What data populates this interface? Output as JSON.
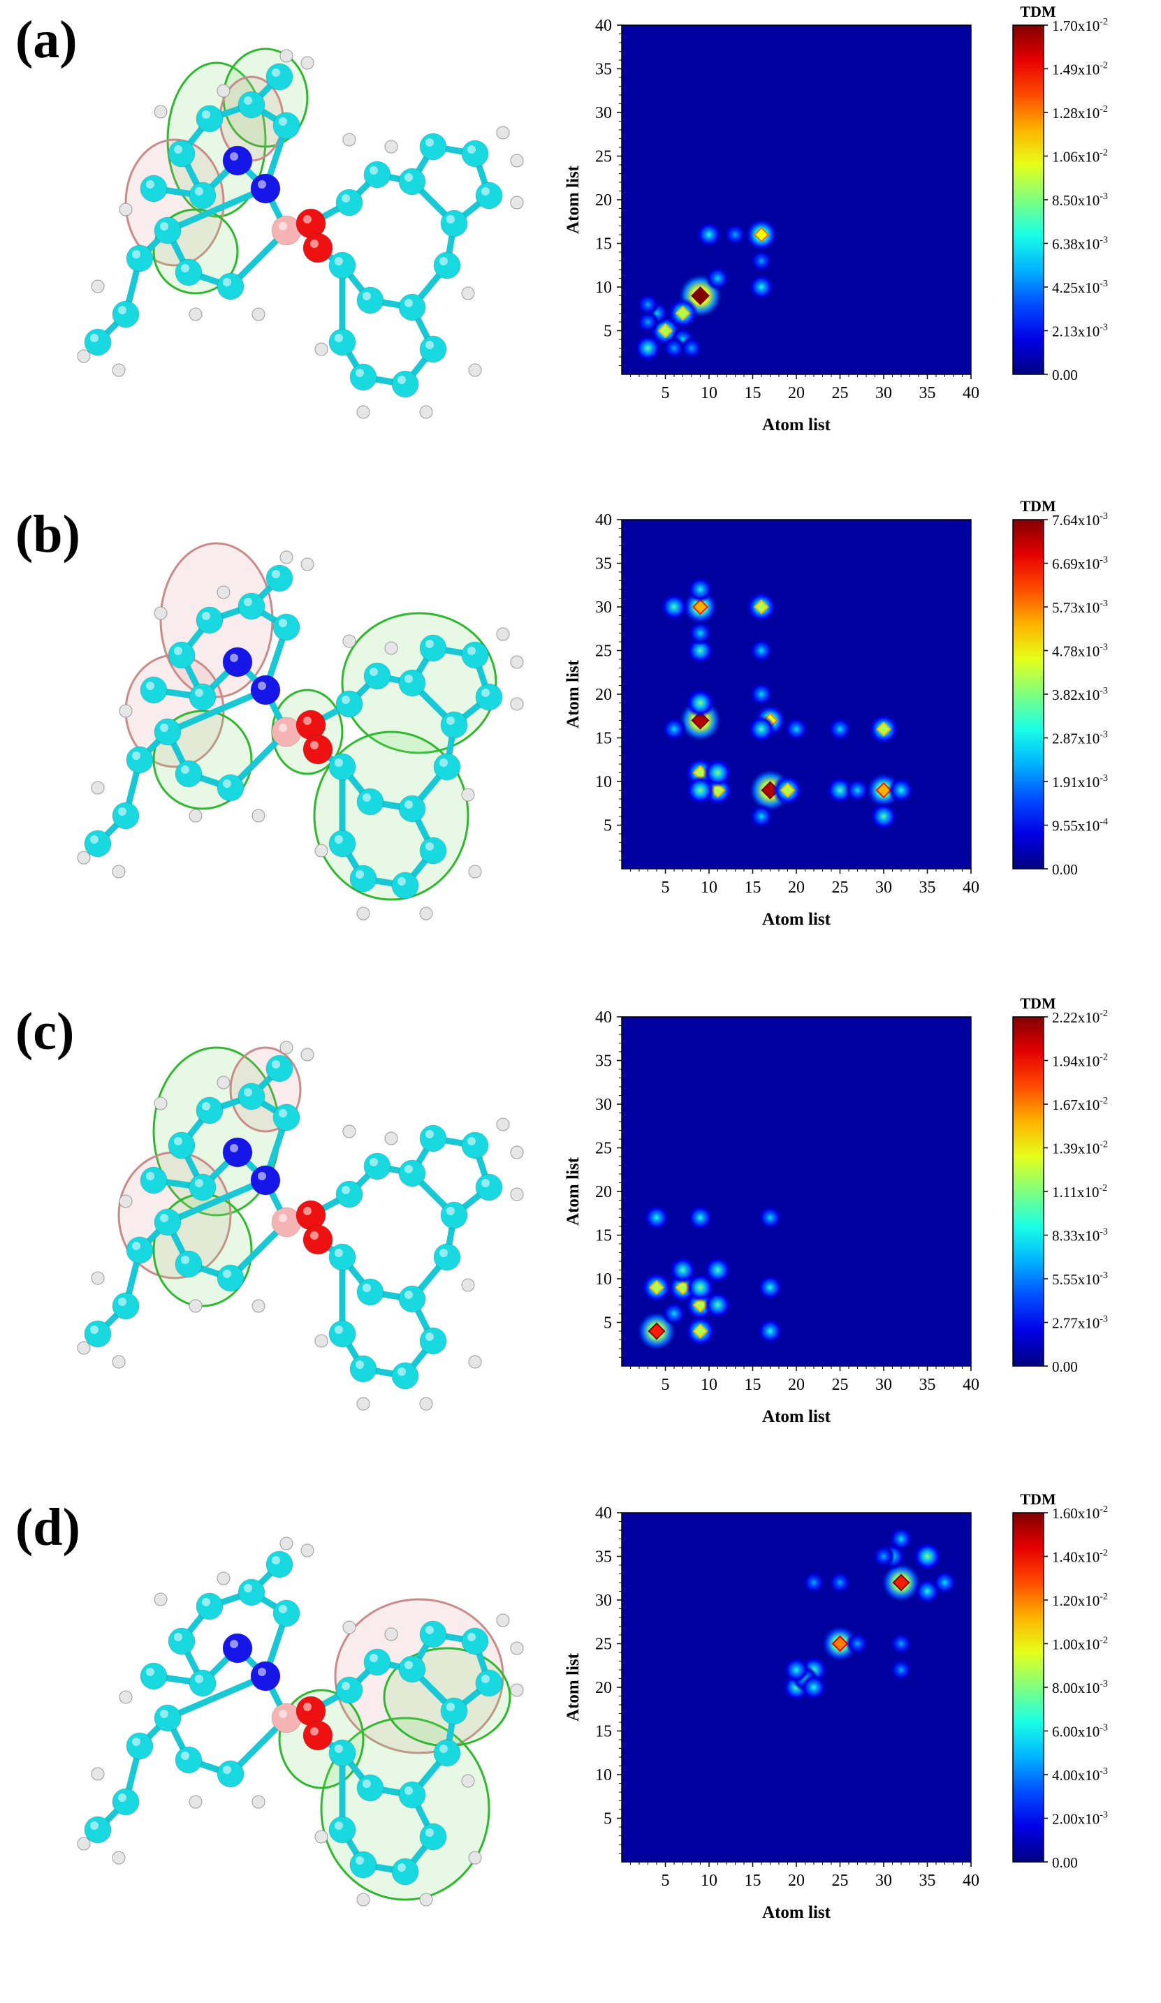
{
  "panels": [
    {
      "label": "(a)",
      "chart_data": {
        "type": "heatmap",
        "xlabel": "Atom list",
        "ylabel": "Atom list",
        "xlim": [
          0,
          40
        ],
        "ylim": [
          0,
          40
        ],
        "xticks": [
          5,
          10,
          15,
          20,
          25,
          30,
          35,
          40
        ],
        "yticks": [
          5,
          10,
          15,
          20,
          25,
          30,
          35,
          40
        ],
        "colorbar_title": "TDM",
        "colorbar_ticks": [
          "1.70x10-2",
          "1.49x10-2",
          "1.28x10-2",
          "1.06x10-2",
          "8.50x10-3",
          "6.38x10-3",
          "4.25x10-3",
          "2.13x10-3",
          "0.00"
        ],
        "vmax": 0.017,
        "hotspots": [
          [
            9,
            9,
            1.0
          ],
          [
            16,
            16,
            0.62
          ],
          [
            3,
            3,
            0.45
          ],
          [
            5,
            5,
            0.55
          ],
          [
            7,
            7,
            0.55
          ],
          [
            7,
            4,
            0.35
          ],
          [
            4,
            7,
            0.35
          ],
          [
            10,
            16,
            0.4
          ],
          [
            16,
            10,
            0.4
          ],
          [
            13,
            16,
            0.3
          ],
          [
            16,
            13,
            0.3
          ],
          [
            3,
            6,
            0.3
          ],
          [
            6,
            3,
            0.3
          ],
          [
            8,
            3,
            0.3
          ],
          [
            3,
            8,
            0.3
          ],
          [
            11,
            11,
            0.35
          ]
        ]
      }
    },
    {
      "label": "(b)",
      "chart_data": {
        "type": "heatmap",
        "xlabel": "Atom list",
        "ylabel": "Atom list",
        "xlim": [
          0,
          40
        ],
        "ylim": [
          0,
          40
        ],
        "xticks": [
          5,
          10,
          15,
          20,
          25,
          30,
          35,
          40
        ],
        "yticks": [
          5,
          10,
          15,
          20,
          25,
          30,
          35,
          40
        ],
        "colorbar_title": "TDM",
        "colorbar_ticks": [
          "7.64x10-3",
          "6.69x10-3",
          "5.73x10-3",
          "4.78x10-3",
          "3.82x10-3",
          "2.87x10-3",
          "1.91x10-3",
          "9.55x10-4",
          "0.00"
        ],
        "vmax": 0.00764,
        "hotspots": [
          [
            9,
            17,
            0.95
          ],
          [
            9,
            30,
            0.7
          ],
          [
            17,
            9,
            0.95
          ],
          [
            30,
            9,
            0.7
          ],
          [
            9,
            11,
            0.55
          ],
          [
            11,
            9,
            0.55
          ],
          [
            11,
            11,
            0.5
          ],
          [
            16,
            30,
            0.55
          ],
          [
            30,
            16,
            0.55
          ],
          [
            17,
            17,
            0.6
          ],
          [
            9,
            19,
            0.5
          ],
          [
            19,
            9,
            0.55
          ],
          [
            6,
            30,
            0.45
          ],
          [
            30,
            6,
            0.45
          ],
          [
            9,
            25,
            0.45
          ],
          [
            25,
            9,
            0.45
          ],
          [
            16,
            16,
            0.45
          ],
          [
            6,
            16,
            0.35
          ],
          [
            16,
            6,
            0.35
          ],
          [
            9,
            9,
            0.5
          ],
          [
            32,
            9,
            0.4
          ],
          [
            9,
            32,
            0.4
          ],
          [
            20,
            16,
            0.35
          ],
          [
            16,
            20,
            0.35
          ],
          [
            27,
            9,
            0.35
          ],
          [
            9,
            27,
            0.35
          ],
          [
            16,
            25,
            0.35
          ],
          [
            25,
            16,
            0.35
          ]
        ]
      }
    },
    {
      "label": "(c)",
      "chart_data": {
        "type": "heatmap",
        "xlabel": "Atom list",
        "ylabel": "Atom list",
        "xlim": [
          0,
          40
        ],
        "ylim": [
          0,
          40
        ],
        "xticks": [
          5,
          10,
          15,
          20,
          25,
          30,
          35,
          40
        ],
        "yticks": [
          5,
          10,
          15,
          20,
          25,
          30,
          35,
          40
        ],
        "colorbar_title": "TDM",
        "colorbar_ticks": [
          "2.22x10-2",
          "1.94x10-2",
          "1.67x10-2",
          "1.39x10-2",
          "1.11x10-2",
          "8.33x10-3",
          "5.55x10-3",
          "2.77x10-3",
          "0.00"
        ],
        "vmax": 0.0222,
        "hotspots": [
          [
            4,
            4,
            0.85
          ],
          [
            7,
            9,
            0.55
          ],
          [
            9,
            7,
            0.55
          ],
          [
            4,
            9,
            0.55
          ],
          [
            9,
            4,
            0.55
          ],
          [
            9,
            9,
            0.5
          ],
          [
            11,
            7,
            0.45
          ],
          [
            7,
            11,
            0.45
          ],
          [
            11,
            11,
            0.45
          ],
          [
            4,
            17,
            0.4
          ],
          [
            17,
            4,
            0.4
          ],
          [
            9,
            17,
            0.4
          ],
          [
            17,
            9,
            0.4
          ],
          [
            6,
            6,
            0.35
          ],
          [
            17,
            17,
            0.35
          ]
        ]
      }
    },
    {
      "label": "(d)",
      "chart_data": {
        "type": "heatmap",
        "xlabel": "Atom list",
        "ylabel": "Atom list",
        "xlim": [
          0,
          40
        ],
        "ylim": [
          0,
          40
        ],
        "xticks": [
          5,
          10,
          15,
          20,
          25,
          30,
          35,
          40
        ],
        "yticks": [
          5,
          10,
          15,
          20,
          25,
          30,
          35,
          40
        ],
        "colorbar_title": "TDM",
        "colorbar_ticks": [
          "1.60x10-2",
          "1.40x10-2",
          "1.20x10-2",
          "1.00x10-2",
          "8.00x10-3",
          "6.00x10-3",
          "4.00x10-3",
          "2.00x10-3",
          "0.00"
        ],
        "vmax": 0.016,
        "hotspots": [
          [
            32,
            32,
            0.85
          ],
          [
            25,
            25,
            0.75
          ],
          [
            35,
            35,
            0.5
          ],
          [
            20,
            20,
            0.45
          ],
          [
            22,
            22,
            0.45
          ],
          [
            21,
            21,
            0.4
          ],
          [
            20,
            22,
            0.4
          ],
          [
            22,
            20,
            0.4
          ],
          [
            35,
            31,
            0.4
          ],
          [
            31,
            35,
            0.4
          ],
          [
            37,
            32,
            0.35
          ],
          [
            32,
            37,
            0.35
          ],
          [
            30,
            35,
            0.3
          ],
          [
            25,
            32,
            0.3
          ],
          [
            32,
            25,
            0.3
          ],
          [
            22,
            32,
            0.3
          ],
          [
            32,
            22,
            0.3
          ],
          [
            27,
            25,
            0.3
          ]
        ]
      }
    }
  ]
}
